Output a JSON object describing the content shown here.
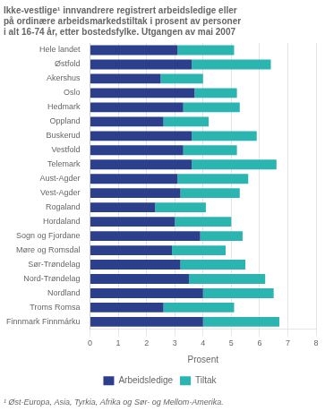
{
  "chart_data": {
    "type": "bar",
    "orientation": "horizontal",
    "stacked": true,
    "title": "Ikke-vestlige¹ innvandrere registrert arbeidsledige eller\npå ordinære arbeidsmarkedstiltak i prosent av personer\ni alt 16-74 år, etter bostedsfylke. Utgangen av mai 2007",
    "footnote": "¹ Øst-Europa, Asia, Tyrkia, Afrika og Sør- og Mellom-Amerika.",
    "xlabel": "Prosent",
    "categories": [
      "Hele landet",
      "Østfold",
      "Akershus",
      "Oslo",
      "Hedmark",
      "Oppland",
      "Buskerud",
      "Vestfold",
      "Telemark",
      "Aust-Agder",
      "Vest-Agder",
      "Rogaland",
      "Hordaland",
      "Sogn og Fjordane",
      "Møre og Romsdal",
      "Sør-Trøndelag",
      "Nord-Trøndelag",
      "Nordland",
      "Troms Romsa",
      "Finnmark Finnmárku"
    ],
    "series": [
      {
        "name": "Arbeidsledige",
        "color": "#2b3f8c",
        "values": [
          3.1,
          3.6,
          2.5,
          3.7,
          3.3,
          2.6,
          3.6,
          3.3,
          3.6,
          3.1,
          3.2,
          2.3,
          3.0,
          3.9,
          2.9,
          3.2,
          3.5,
          4.0,
          2.6,
          4.0
        ]
      },
      {
        "name": "Tiltak",
        "color": "#2ab5b0",
        "values": [
          2.0,
          2.8,
          1.5,
          1.5,
          2.0,
          1.6,
          2.3,
          1.9,
          3.0,
          2.5,
          2.1,
          1.8,
          2.0,
          1.5,
          1.9,
          2.3,
          2.7,
          2.5,
          2.5,
          2.7
        ]
      }
    ],
    "xlim": [
      0,
      8
    ],
    "xticks": [
      0,
      1,
      2,
      3,
      4,
      5,
      6,
      7,
      8
    ],
    "grid": true,
    "legend": "bottom"
  }
}
